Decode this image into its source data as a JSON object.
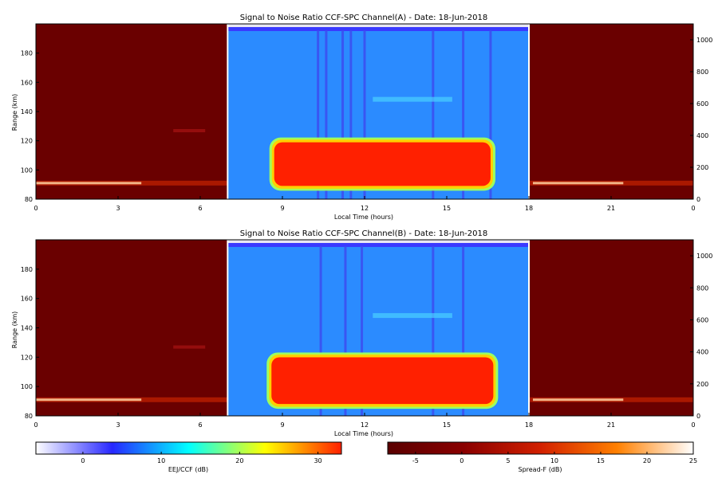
{
  "chart_data": [
    {
      "type": "heatmap",
      "title": "Signal to Noise Ratio CCF-SPC Channel(A) - Date: 18-Jun-2018",
      "xlabel": "Local Time (hours)",
      "ylabel": "Range (km)",
      "x_ticks": [
        "0",
        "3",
        "6",
        "9",
        "12",
        "15",
        "18",
        "21",
        "0"
      ],
      "xlim": [
        0,
        24
      ],
      "y_ticks": [
        "80",
        "100",
        "120",
        "140",
        "160",
        "180"
      ],
      "ylim": [
        80,
        200
      ],
      "y2_ticks": [
        "0",
        "200",
        "400",
        "600",
        "800",
        "1000"
      ],
      "y2lim": [
        0,
        1100
      ],
      "ccf_window_hours": [
        7,
        18
      ],
      "features": {
        "eej_band_km": [
          88,
          120
        ],
        "eej_hours": [
          8.7,
          16.6
        ],
        "night_es_km": 91,
        "vertical_streak_hours": [
          10.3,
          10.6,
          11.2,
          11.5,
          12.0,
          14.5,
          15.6,
          16.6
        ],
        "background_snr_db": 6,
        "night_background_value": -6
      }
    },
    {
      "type": "heatmap",
      "title": "Signal to Noise Ratio CCF-SPC Channel(B) - Date: 18-Jun-2018",
      "xlabel": "Local Time (hours)",
      "ylabel": "Range (km)",
      "x_ticks": [
        "0",
        "3",
        "6",
        "9",
        "12",
        "15",
        "18",
        "21",
        "0"
      ],
      "xlim": [
        0,
        24
      ],
      "y_ticks": [
        "80",
        "100",
        "120",
        "140",
        "160",
        "180"
      ],
      "ylim": [
        80,
        200
      ],
      "y2_ticks": [
        "0",
        "200",
        "400",
        "600",
        "800",
        "1000"
      ],
      "y2lim": [
        0,
        1100
      ],
      "ccf_window_hours": [
        7,
        18
      ],
      "features": {
        "eej_band_km": [
          87,
          121
        ],
        "eej_hours": [
          8.6,
          16.7
        ],
        "night_es_km": 91,
        "vertical_streak_hours": [
          10.4,
          11.3,
          11.9,
          14.5,
          15.6
        ],
        "background_snr_db": 6,
        "night_background_value": -6
      }
    }
  ],
  "colorbars": [
    {
      "label": "EEJ/CCF (dB)",
      "range": [
        -6,
        33
      ],
      "ticks": [
        "0",
        "10",
        "20",
        "30"
      ],
      "tick_values": [
        0,
        10,
        20,
        30
      ],
      "colors": [
        "#ffffff",
        "#2727ff",
        "#00ffff",
        "#ffff00",
        "#ff2000"
      ]
    },
    {
      "label": "Spread-F (dB)",
      "range": [
        -8,
        25
      ],
      "ticks": [
        "-5",
        "0",
        "5",
        "10",
        "15",
        "20",
        "25"
      ],
      "tick_values": [
        -5,
        0,
        5,
        10,
        15,
        20,
        25
      ],
      "colors": [
        "#5a0000",
        "#8a0000",
        "#d22000",
        "#ff8000",
        "#ffffff"
      ]
    }
  ]
}
